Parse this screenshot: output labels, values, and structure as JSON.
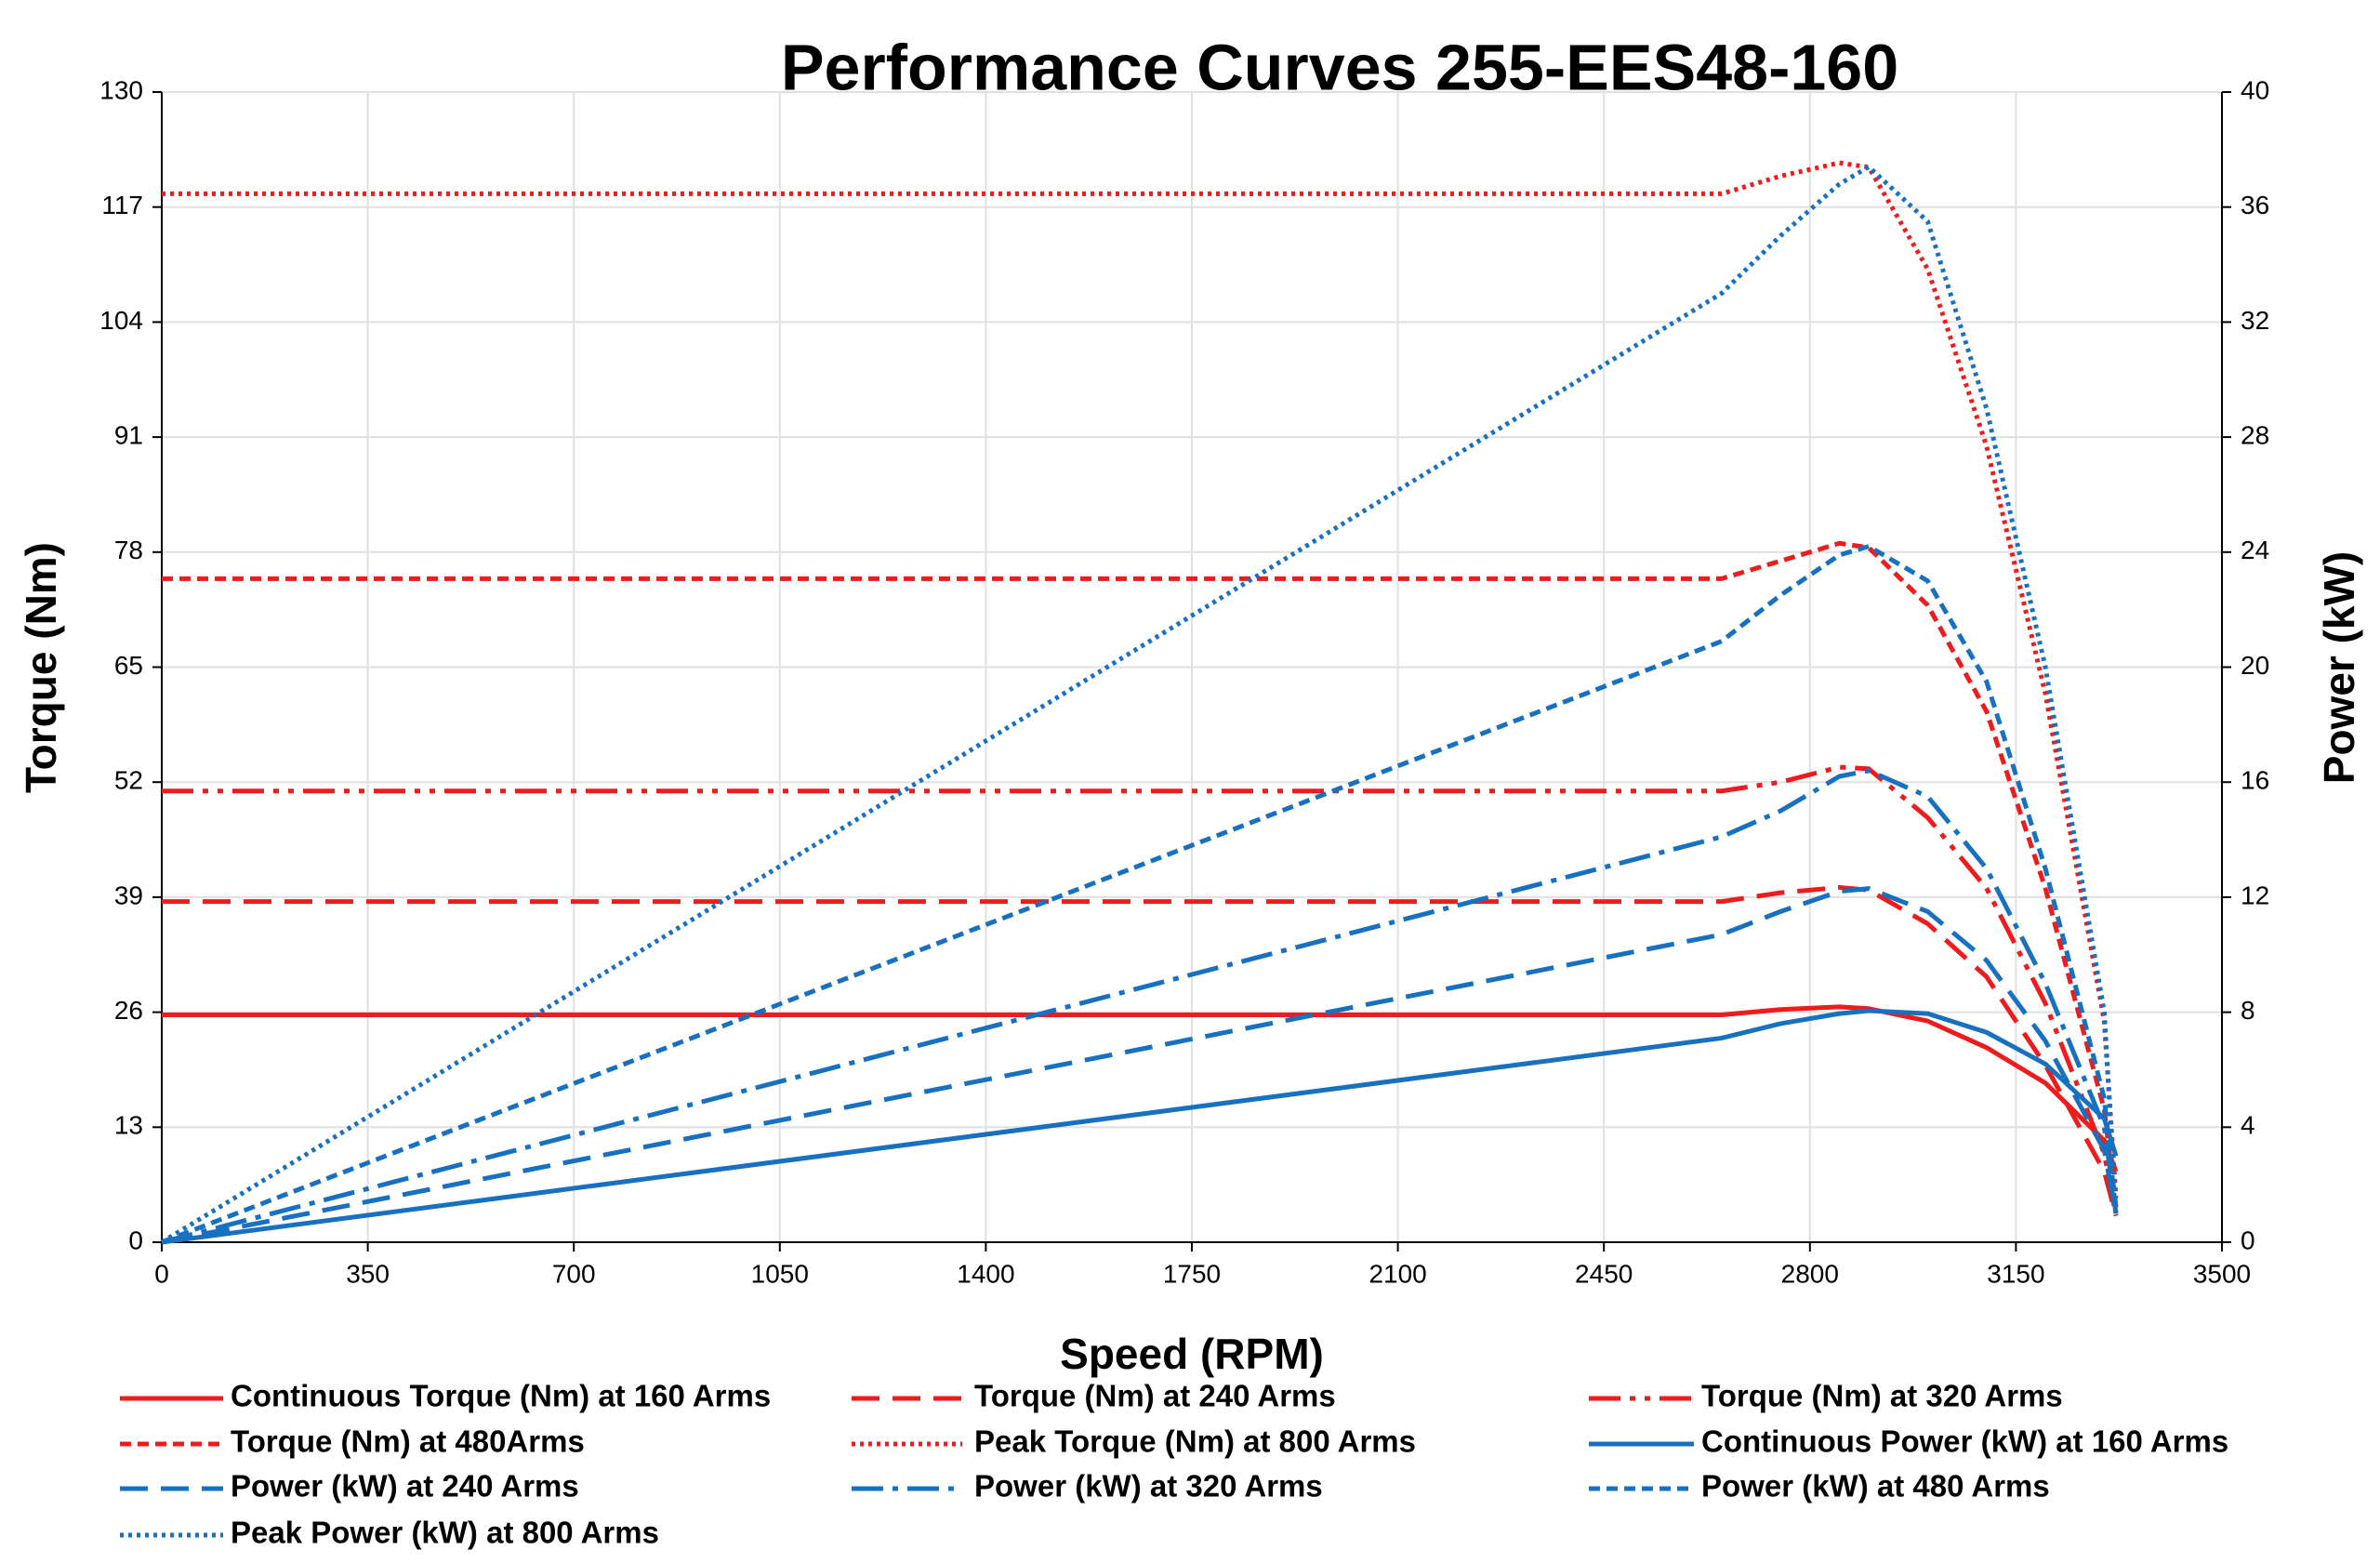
{
  "chart_data": {
    "type": "line",
    "title": "Performance Curves 255-EES48-160",
    "x_label": "Speed (RPM)",
    "y_label": "Torque (Nm)",
    "y2_label": "Power (kW)",
    "x": [
      0,
      2650,
      2750,
      2850,
      2900,
      3000,
      3100,
      3200,
      3300,
      3320
    ],
    "xlim": [
      0,
      3500
    ],
    "xticks": [
      0,
      350,
      700,
      1050,
      1400,
      1750,
      2100,
      2450,
      2800,
      3150,
      3500
    ],
    "ylim": [
      0,
      130
    ],
    "yticks": [
      0,
      13,
      26,
      39,
      52,
      65,
      78,
      91,
      104,
      117,
      130
    ],
    "y2lim": [
      0,
      40
    ],
    "y2ticks": [
      0,
      4,
      8,
      12,
      16,
      20,
      24,
      28,
      32,
      36,
      40
    ],
    "grid": true,
    "series": [
      {
        "name": "Continuous Torque (Nm) at 160 Arms",
        "color": "#ee1c1c",
        "dash": "solid",
        "values": [
          25.7,
          25.7,
          26.3,
          26.6,
          26.4,
          25,
          22,
          18,
          11.5,
          8
        ]
      },
      {
        "name": "Torque (Nm) at 240 Arms",
        "color": "#ee1c1c",
        "dash": "long-dash",
        "values": [
          38.5,
          38.5,
          39.5,
          40.1,
          39.8,
          36,
          30,
          20,
          8,
          3
        ]
      },
      {
        "name": "Torque (Nm) at 320 Arms",
        "color": "#ee1c1c",
        "dash": "dash-dot-dot",
        "values": [
          51,
          51,
          52,
          53.7,
          53.5,
          48,
          40,
          27,
          10,
          3
        ]
      },
      {
        "name": "Torque (Nm) at 480Arms",
        "color": "#ee1c1c",
        "dash": "short-dash",
        "values": [
          75,
          75,
          77,
          79,
          78.5,
          72,
          60,
          40,
          15,
          4
        ]
      },
      {
        "name": "Peak Torque (Nm) at 800  Arms",
        "color": "#ee1c1c",
        "dash": "dotted",
        "values": [
          118.5,
          118.5,
          120.5,
          122,
          121.5,
          110,
          90,
          62,
          25,
          5
        ]
      },
      {
        "name": "Continuous Power (kW) at 160 Arms",
        "color": "#1870c0",
        "dash": "solid",
        "axis": "y2",
        "values": [
          0,
          7.1,
          7.6,
          7.95,
          8.05,
          7.95,
          7.3,
          6.2,
          4.3,
          3
        ]
      },
      {
        "name": "Power (kW) at 240 Arms",
        "color": "#1870c0",
        "dash": "long-dash",
        "axis": "y2",
        "values": [
          0,
          10.7,
          11.5,
          12.2,
          12.3,
          11.5,
          9.8,
          7,
          3.2,
          1
        ]
      },
      {
        "name": "Power (kW) at 320 Arms",
        "color": "#1870c0",
        "dash": "dash-dot",
        "axis": "y2",
        "values": [
          0,
          14.1,
          15,
          16.2,
          16.4,
          15.5,
          13,
          9,
          4,
          1
        ]
      },
      {
        "name": "Power (kW) at 480 Arms",
        "color": "#1870c0",
        "dash": "short-dash",
        "axis": "y2",
        "values": [
          0,
          20.9,
          22.5,
          23.9,
          24.2,
          23,
          19.5,
          13,
          5,
          1
        ]
      },
      {
        "name": "Peak Power (kW) at 800 Arms",
        "color": "#1870c0",
        "dash": "dotted",
        "axis": "y2",
        "values": [
          0,
          33,
          35,
          36.8,
          37.4,
          35.5,
          29,
          20,
          8,
          1
        ]
      }
    ]
  }
}
